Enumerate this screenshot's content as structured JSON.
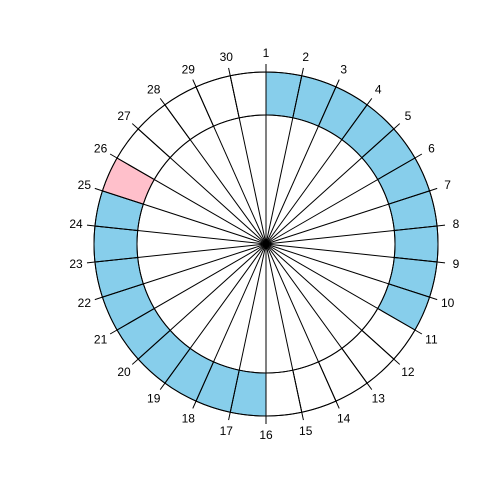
{
  "chart_data": {
    "type": "circular-calendar",
    "title": "",
    "segments": [
      1,
      2,
      3,
      4,
      5,
      6,
      7,
      8,
      9,
      10,
      11,
      12,
      13,
      14,
      15,
      16,
      17,
      18,
      19,
      20,
      21,
      22,
      23,
      24,
      25,
      26,
      27,
      28,
      29,
      30
    ],
    "labels": [
      "1",
      "2",
      "3",
      "4",
      "5",
      "6",
      "7",
      "8",
      "9",
      "10",
      "11",
      "12",
      "13",
      "14",
      "15",
      "16",
      "17",
      "18",
      "19",
      "20",
      "21",
      "22",
      "23",
      "24",
      "25",
      "26",
      "27",
      "28",
      "29",
      "30"
    ],
    "categories": [
      "1",
      "2",
      "3",
      "4",
      "5",
      "6",
      "7",
      "8",
      "9",
      "10",
      "11",
      "12",
      "13",
      "14",
      "15",
      "16",
      "17",
      "18",
      "19",
      "20",
      "21",
      "22",
      "23",
      "24",
      "25",
      "26",
      "27",
      "28",
      "29",
      "30"
    ],
    "values": [
      1,
      1,
      1,
      1,
      1,
      1,
      1,
      1,
      1,
      1,
      0,
      0,
      0,
      0,
      0,
      1,
      1,
      1,
      1,
      1,
      1,
      1,
      1,
      1,
      2,
      0,
      0,
      0,
      0,
      0
    ],
    "state_colors": {
      "0": "#ffffff",
      "1": "#87ceeb",
      "2": "#ffc0cb"
    },
    "start_position": "top",
    "direction": "clockwise"
  }
}
